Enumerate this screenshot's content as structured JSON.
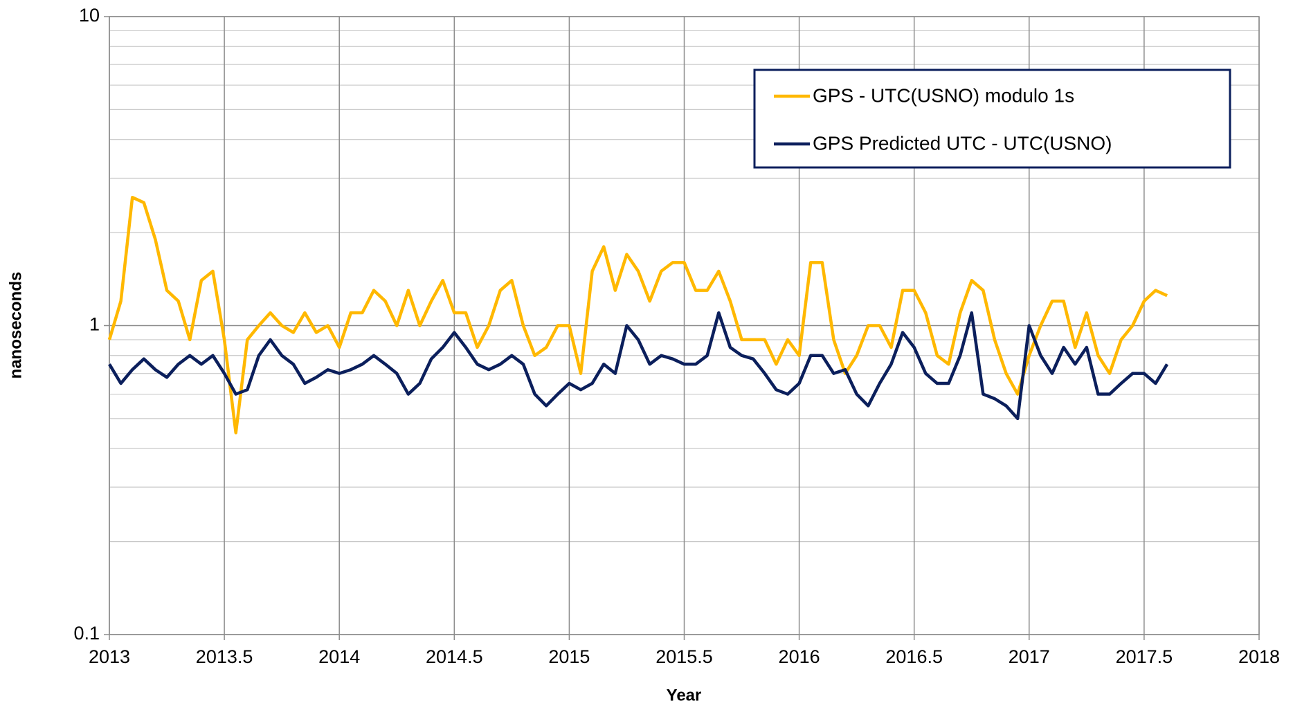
{
  "chart_data": {
    "type": "line",
    "xlabel": "Year",
    "ylabel": "nanoseconds",
    "xlim": [
      2013,
      2018
    ],
    "xticks": [
      2013,
      2013.5,
      2014,
      2014.5,
      2015,
      2015.5,
      2016,
      2016.5,
      2017,
      2017.5,
      2018
    ],
    "ylim": [
      0.1,
      10
    ],
    "yticks": [
      0.1,
      1,
      10
    ],
    "yticks_minor": [
      0.2,
      0.3,
      0.4,
      0.5,
      0.6,
      0.7,
      0.8,
      0.9,
      2,
      3,
      4,
      5,
      6,
      7,
      8,
      9
    ],
    "log_y": true,
    "grid": true,
    "legend": "upper right",
    "x": [
      2013,
      2013.05,
      2013.1,
      2013.15,
      2013.2,
      2013.25,
      2013.3,
      2013.35,
      2013.4,
      2013.45,
      2013.5,
      2013.55,
      2013.6,
      2013.65,
      2013.7,
      2013.75,
      2013.8,
      2013.85,
      2013.9,
      2013.95,
      2014,
      2014.05,
      2014.1,
      2014.15,
      2014.2,
      2014.25,
      2014.3,
      2014.35,
      2014.4,
      2014.45,
      2014.5,
      2014.55,
      2014.6,
      2014.65,
      2014.7,
      2014.75,
      2014.8,
      2014.85,
      2014.9,
      2014.95,
      2015,
      2015.05,
      2015.1,
      2015.15,
      2015.2,
      2015.25,
      2015.3,
      2015.35,
      2015.4,
      2015.45,
      2015.5,
      2015.55,
      2015.6,
      2015.65,
      2015.7,
      2015.75,
      2015.8,
      2015.85,
      2015.9,
      2015.95,
      2016,
      2016.05,
      2016.1,
      2016.15,
      2016.2,
      2016.25,
      2016.3,
      2016.35,
      2016.4,
      2016.45,
      2016.5,
      2016.55,
      2016.6,
      2016.65,
      2016.7,
      2016.75,
      2016.8,
      2016.85,
      2016.9,
      2016.95,
      2017,
      2017.05,
      2017.1,
      2017.15,
      2017.2,
      2017.25,
      2017.3,
      2017.35,
      2017.4,
      2017.45,
      2017.5,
      2017.55,
      2017.6
    ],
    "series": [
      {
        "name": "GPS - UTC(USNO) modulo 1s",
        "color": "#ffb800",
        "values": [
          0.9,
          1.2,
          2.6,
          2.5,
          1.9,
          1.3,
          1.2,
          0.9,
          1.4,
          1.5,
          0.9,
          0.45,
          0.9,
          1.0,
          1.1,
          1.0,
          0.95,
          1.1,
          0.95,
          1.0,
          0.85,
          1.1,
          1.1,
          1.3,
          1.2,
          1.0,
          1.3,
          1.0,
          1.2,
          1.4,
          1.1,
          1.1,
          0.85,
          1.0,
          1.3,
          1.4,
          1.0,
          0.8,
          0.85,
          1.0,
          1.0,
          0.7,
          1.5,
          1.8,
          1.3,
          1.7,
          1.5,
          1.2,
          1.5,
          1.6,
          1.6,
          1.3,
          1.3,
          1.5,
          1.2,
          0.9,
          0.9,
          0.9,
          0.75,
          0.9,
          0.8,
          1.6,
          1.6,
          0.9,
          0.7,
          0.8,
          1.0,
          1.0,
          0.85,
          1.3,
          1.3,
          1.1,
          0.8,
          0.75,
          1.1,
          1.4,
          1.3,
          0.9,
          0.7,
          0.6,
          0.8,
          1.0,
          1.2,
          1.2,
          0.85,
          1.1,
          0.8,
          0.7,
          0.9,
          1.0,
          1.2,
          1.3,
          1.25
        ]
      },
      {
        "name": "GPS Predicted UTC - UTC(USNO)",
        "color": "#0b1f5c",
        "values": [
          0.75,
          0.65,
          0.72,
          0.78,
          0.72,
          0.68,
          0.75,
          0.8,
          0.75,
          0.8,
          0.7,
          0.6,
          0.62,
          0.8,
          0.9,
          0.8,
          0.75,
          0.65,
          0.68,
          0.72,
          0.7,
          0.72,
          0.75,
          0.8,
          0.75,
          0.7,
          0.6,
          0.65,
          0.78,
          0.85,
          0.95,
          0.85,
          0.75,
          0.72,
          0.75,
          0.8,
          0.75,
          0.6,
          0.55,
          0.6,
          0.65,
          0.62,
          0.65,
          0.75,
          0.7,
          1.0,
          0.9,
          0.75,
          0.8,
          0.78,
          0.75,
          0.75,
          0.8,
          1.1,
          0.85,
          0.8,
          0.78,
          0.7,
          0.62,
          0.6,
          0.65,
          0.8,
          0.8,
          0.7,
          0.72,
          0.6,
          0.55,
          0.65,
          0.75,
          0.95,
          0.85,
          0.7,
          0.65,
          0.65,
          0.8,
          1.1,
          0.6,
          0.58,
          0.55,
          0.5,
          1.0,
          0.8,
          0.7,
          0.85,
          0.75,
          0.85,
          0.6,
          0.6,
          0.65,
          0.7,
          0.7,
          0.65,
          0.75
        ]
      }
    ]
  }
}
